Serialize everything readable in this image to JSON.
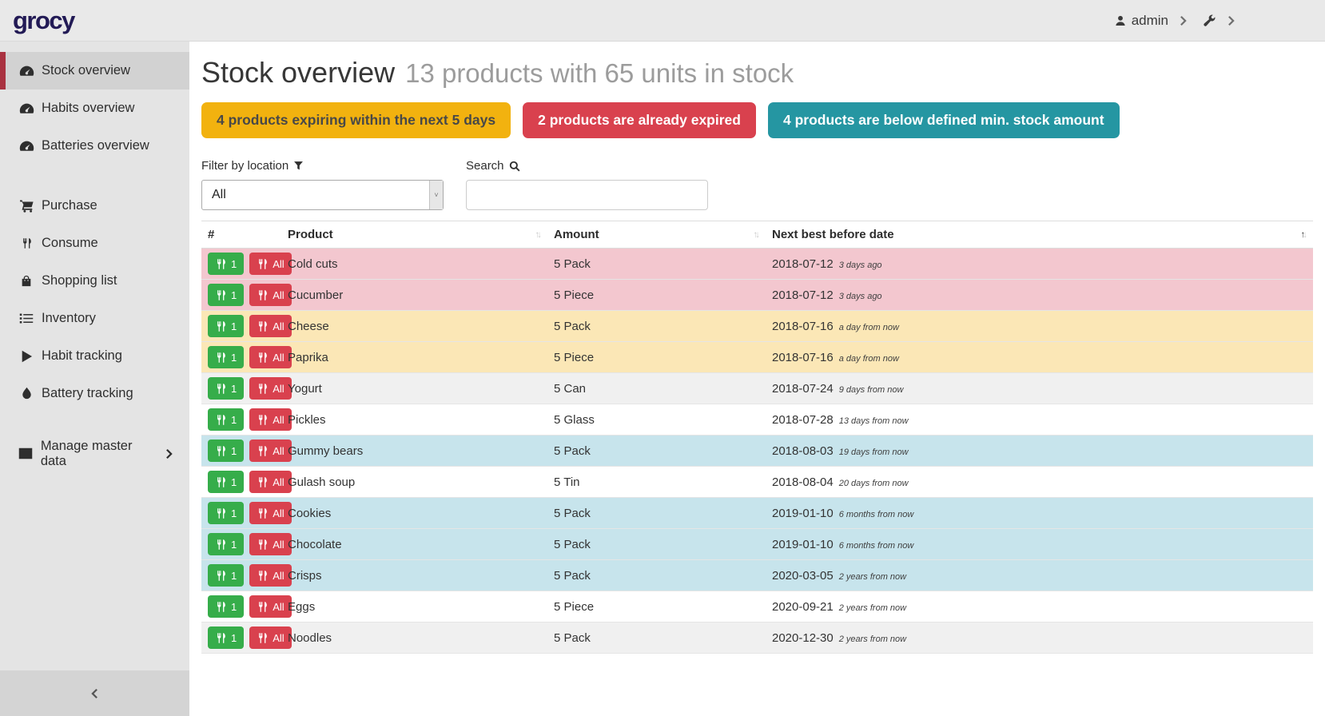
{
  "navbar": {
    "logo": "grocy",
    "user_label": "admin",
    "user_icon": "user-icon",
    "settings_icon": "wrench-icon"
  },
  "sidebar": {
    "items": [
      {
        "label": "Stock overview",
        "icon": "tachometer-icon",
        "active": true,
        "group": 0
      },
      {
        "label": "Habits overview",
        "icon": "tachometer-icon",
        "active": false,
        "group": 0
      },
      {
        "label": "Batteries overview",
        "icon": "tachometer-icon",
        "active": false,
        "group": 0
      },
      {
        "label": "Purchase",
        "icon": "cart-icon",
        "active": false,
        "group": 1
      },
      {
        "label": "Consume",
        "icon": "utensils-icon",
        "active": false,
        "group": 1
      },
      {
        "label": "Shopping list",
        "icon": "bag-icon",
        "active": false,
        "group": 1
      },
      {
        "label": "Inventory",
        "icon": "list-icon",
        "active": false,
        "group": 1
      },
      {
        "label": "Habit tracking",
        "icon": "play-icon",
        "active": false,
        "group": 1
      },
      {
        "label": "Battery tracking",
        "icon": "droplet-icon",
        "active": false,
        "group": 1
      },
      {
        "label": "Manage master data",
        "icon": "table-icon",
        "active": false,
        "group": 2,
        "chevron": true
      }
    ]
  },
  "page": {
    "title": "Stock overview",
    "subtitle": "13 products with 65 units in stock"
  },
  "badges": [
    {
      "label": "4 products expiring within the next 5 days",
      "bg": "#f2b20f",
      "fg": "#484848"
    },
    {
      "label": "2 products are already expired",
      "bg": "#d9414e",
      "fg": "#ffffff"
    },
    {
      "label": "4 products are below defined min. stock amount",
      "bg": "#2596a2",
      "fg": "#ffffff"
    }
  ],
  "filter": {
    "label": "Filter by location",
    "icon": "filter-icon",
    "value": "All"
  },
  "search": {
    "label": "Search",
    "icon": "search-icon",
    "value": ""
  },
  "table": {
    "columns": [
      {
        "label": "#",
        "sortable": false
      },
      {
        "label": "Product",
        "sortable": true,
        "sorted": null
      },
      {
        "label": "Amount",
        "sortable": true,
        "sorted": null
      },
      {
        "label": "Next best before date",
        "sortable": true,
        "sorted": "asc"
      }
    ],
    "row_buttons": [
      {
        "label": "1",
        "icon": "utensils-icon",
        "bg": "#36ad4a"
      },
      {
        "label": "All",
        "icon": "utensils-icon",
        "bg": "#d9414e"
      }
    ],
    "rows": [
      {
        "product": "Cold cuts",
        "amount": "5 Pack",
        "date": "2018-07-12",
        "relative": "3 days ago",
        "status": "expired"
      },
      {
        "product": "Cucumber",
        "amount": "5 Piece",
        "date": "2018-07-12",
        "relative": "3 days ago",
        "status": "expired"
      },
      {
        "product": "Cheese",
        "amount": "5 Pack",
        "date": "2018-07-16",
        "relative": "a day from now",
        "status": "expiring"
      },
      {
        "product": "Paprika",
        "amount": "5 Piece",
        "date": "2018-07-16",
        "relative": "a day from now",
        "status": "expiring"
      },
      {
        "product": "Yogurt",
        "amount": "5 Can",
        "date": "2018-07-24",
        "relative": "9 days from now",
        "status": null
      },
      {
        "product": "Pickles",
        "amount": "5 Glass",
        "date": "2018-07-28",
        "relative": "13 days from now",
        "status": null
      },
      {
        "product": "Gummy bears",
        "amount": "5 Pack",
        "date": "2018-08-03",
        "relative": "19 days from now",
        "status": "belowmin"
      },
      {
        "product": "Gulash soup",
        "amount": "5 Tin",
        "date": "2018-08-04",
        "relative": "20 days from now",
        "status": null
      },
      {
        "product": "Cookies",
        "amount": "5 Pack",
        "date": "2019-01-10",
        "relative": "6 months from now",
        "status": "belowmin"
      },
      {
        "product": "Chocolate",
        "amount": "5 Pack",
        "date": "2019-01-10",
        "relative": "6 months from now",
        "status": "belowmin"
      },
      {
        "product": "Crisps",
        "amount": "5 Pack",
        "date": "2020-03-05",
        "relative": "2 years from now",
        "status": "belowmin"
      },
      {
        "product": "Eggs",
        "amount": "5 Piece",
        "date": "2020-09-21",
        "relative": "2 years from now",
        "status": null
      },
      {
        "product": "Noodles",
        "amount": "5 Pack",
        "date": "2020-12-30",
        "relative": "2 years from now",
        "status": null
      }
    ]
  },
  "status_colors": {
    "expired": "#f3c7cf",
    "expiring": "#fbe7b6",
    "belowmin": "#c7e4ec",
    "stripe": "#f0f0f0",
    "none": "#ffffff"
  }
}
